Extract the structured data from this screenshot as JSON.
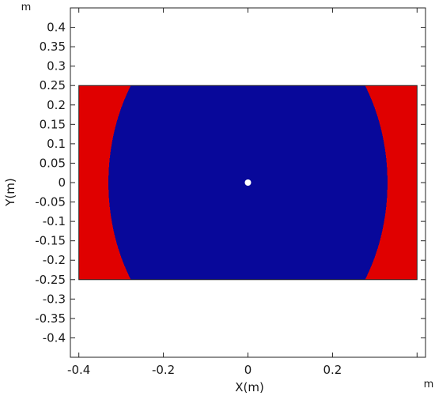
{
  "chart_data": {
    "type": "heatmap",
    "title": "",
    "xlabel": "X(m)",
    "ylabel": "Y(m)",
    "x_unit": "m",
    "y_unit": "m",
    "xlim": [
      -0.42,
      0.42
    ],
    "ylim": [
      -0.45,
      0.45
    ],
    "x_ticks": [
      -0.4,
      -0.2,
      0,
      0.2,
      0.4
    ],
    "x_tick_labels": [
      "-0.4",
      "-0.2",
      "0",
      "0.2",
      ""
    ],
    "y_ticks": [
      0.4,
      0.35,
      0.3,
      0.25,
      0.2,
      0.15,
      0.1,
      0.05,
      0,
      -0.05,
      -0.1,
      -0.15,
      -0.2,
      -0.25,
      -0.3,
      -0.35,
      -0.4
    ],
    "y_tick_labels": [
      "0.4",
      "0.35",
      "0.3",
      "0.25",
      "0.2",
      "0.15",
      "0.1",
      "0.05",
      "0",
      "-0.05",
      "-0.1",
      "-0.15",
      "-0.2",
      "-0.25",
      "-0.3",
      "-0.35",
      "-0.4"
    ],
    "domain": {
      "x": [
        -0.4,
        0.4
      ],
      "y": [
        -0.25,
        0.25
      ]
    },
    "source_point": {
      "x": 0,
      "y": 0
    },
    "grid": false,
    "legend": "none",
    "colormap": {
      "stops": [
        "#08089a",
        "#0a4cff",
        "#1fd8ff",
        "#7ff2a6",
        "#f5f500",
        "#ffc000",
        "#ff7a00",
        "#ff2a00",
        "#e00000"
      ],
      "shape": "elliptical",
      "x_semi_axis": 0.33,
      "y_semi_axis": 0.46
    }
  }
}
